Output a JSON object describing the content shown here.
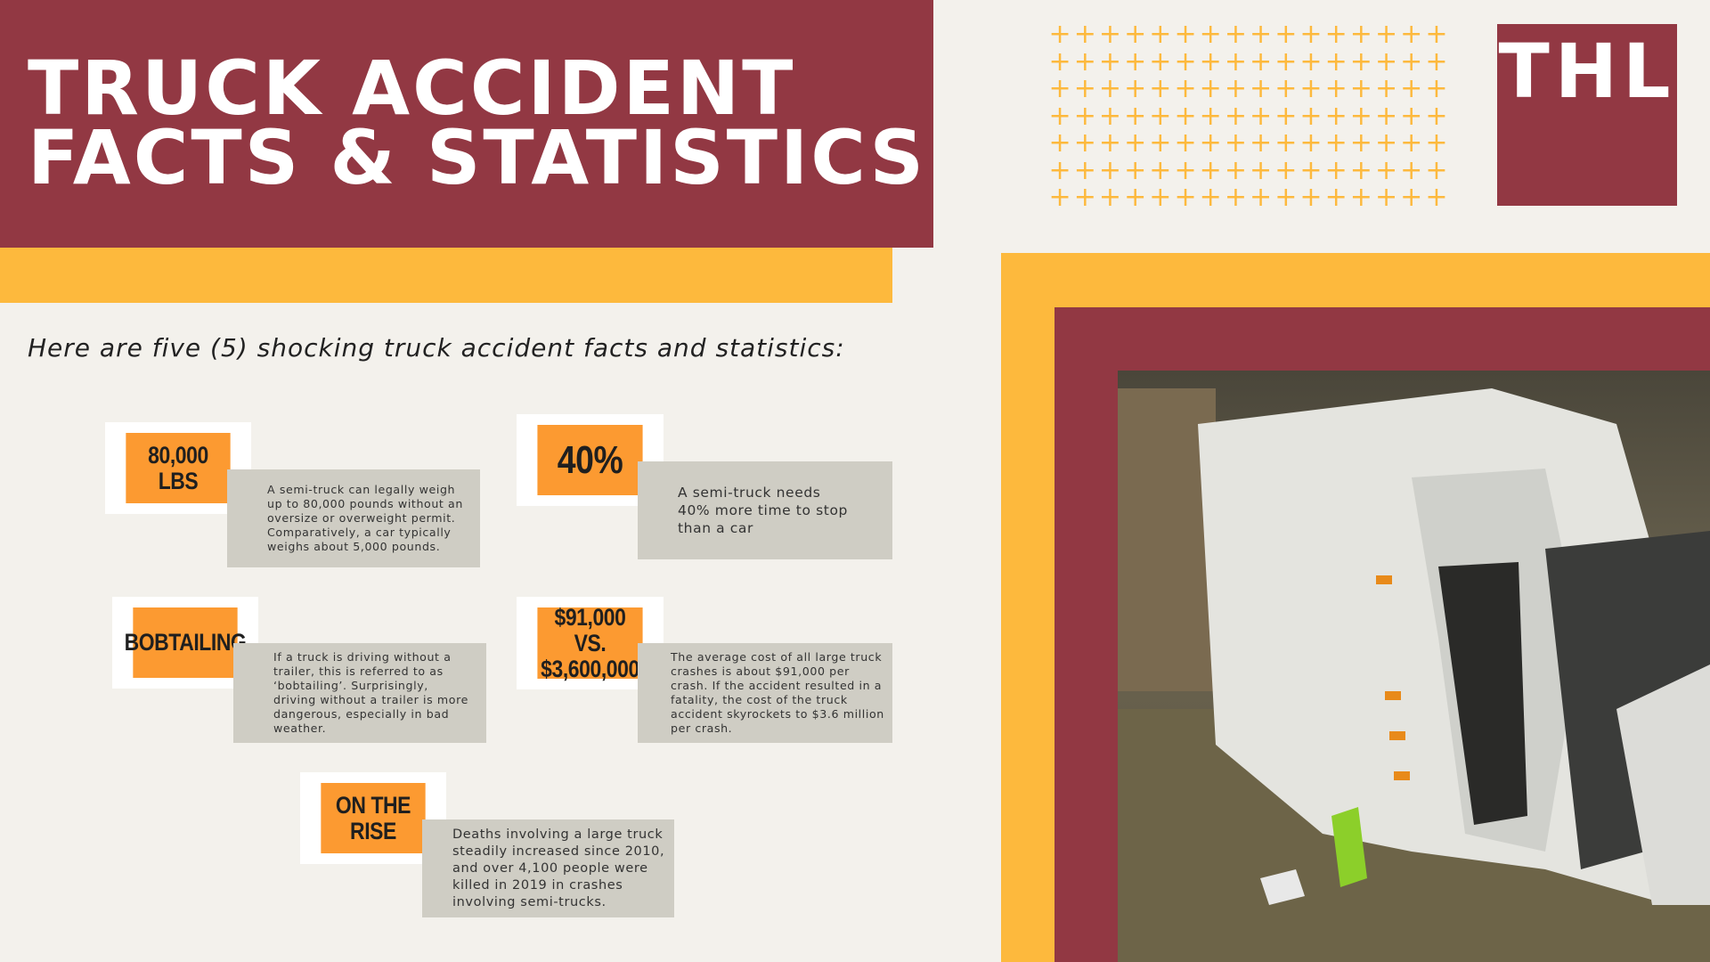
{
  "header": {
    "title": "TRUCK ACCIDENT\nFACTS & STATISTICS"
  },
  "subtitle": "Here are five (5) shocking truck accident facts and statistics:",
  "logo": "THL",
  "colors": {
    "maroon": "#923843",
    "yellow": "#fdb93d",
    "orange": "#fc9a31",
    "gray": "#cfcdc4",
    "background": "#f3f1ec"
  },
  "facts": [
    {
      "label": "80,000 LBS",
      "text": "A semi-truck can legally weigh up to 80,000 pounds without an oversize or overweight permit. Comparatively, a car typically weighs about 5,000 pounds."
    },
    {
      "label": "40%",
      "text": "A semi-truck needs 40% more time to stop than a car"
    },
    {
      "label": "BOBTAILING",
      "text": "If a truck is driving without a trailer, this is referred to as ‘bobtailing’. Surprisingly, driving without a trailer is more dangerous, especially in bad weather."
    },
    {
      "label": "$91,000 VS.\n$3,600,000",
      "text": "The average cost of all large truck crashes is about $91,000 per crash. If the accident resulted in a fatality, the cost of the truck accident skyrockets to $3.6 million per crash."
    },
    {
      "label": "ON THE\nRISE",
      "text": "Deaths involving a large truck steadily increased since 2010, and over 4,100 people were killed in 2019 in crashes involving semi-trucks."
    }
  ]
}
